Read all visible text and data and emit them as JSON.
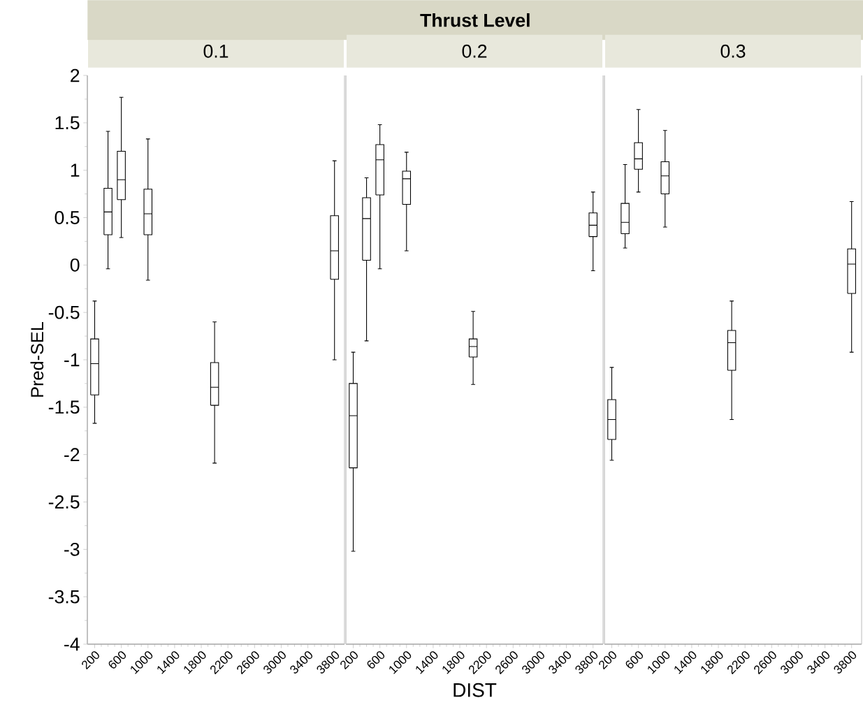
{
  "chart_data": [
    {
      "type": "box",
      "title": "0.1",
      "annotations": [
        "Thrust Level"
      ],
      "ylabel": "Pred-SEL",
      "x": [
        200,
        400,
        600,
        1000,
        2000,
        3800
      ],
      "boxes": [
        {
          "low": -1.67,
          "q1": -1.37,
          "median": -1.04,
          "q3": -0.78,
          "high": -0.38
        },
        {
          "low": -0.04,
          "q1": 0.32,
          "median": 0.56,
          "q3": 0.81,
          "high": 1.41
        },
        {
          "low": 0.29,
          "q1": 0.69,
          "median": 0.9,
          "q3": 1.2,
          "high": 1.77
        },
        {
          "low": -0.16,
          "q1": 0.32,
          "median": 0.54,
          "q3": 0.8,
          "high": 1.33
        },
        {
          "low": -2.09,
          "q1": -1.48,
          "median": -1.29,
          "q3": -1.03,
          "high": -0.6
        },
        {
          "low": -1.0,
          "q1": -0.15,
          "median": 0.15,
          "q3": 0.52,
          "high": 1.1
        }
      ],
      "xlim": [
        90,
        3950
      ],
      "xticks": [
        200,
        600,
        1000,
        1400,
        1800,
        2200,
        2600,
        3000,
        3400,
        3800
      ],
      "ylim": [
        -4,
        2
      ],
      "yticks": [
        -4,
        -3.5,
        -3,
        -2.5,
        -2,
        -1.5,
        -1,
        -0.5,
        0,
        0.5,
        1,
        1.5,
        2
      ]
    },
    {
      "type": "box",
      "title": "0.2",
      "xlabel": "DIST",
      "x": [
        200,
        400,
        600,
        1000,
        2000,
        3800
      ],
      "boxes": [
        {
          "low": -3.02,
          "q1": -2.14,
          "median": -1.59,
          "q3": -1.25,
          "high": -0.92
        },
        {
          "low": -0.8,
          "q1": 0.05,
          "median": 0.49,
          "q3": 0.71,
          "high": 0.92
        },
        {
          "low": -0.04,
          "q1": 0.74,
          "median": 1.11,
          "q3": 1.27,
          "high": 1.48
        },
        {
          "low": 0.15,
          "q1": 0.64,
          "median": 0.91,
          "q3": 0.99,
          "high": 1.19
        },
        {
          "low": -1.26,
          "q1": -0.97,
          "median": -0.86,
          "q3": -0.78,
          "high": -0.49
        },
        {
          "low": -0.06,
          "q1": 0.3,
          "median": 0.42,
          "q3": 0.55,
          "high": 0.77
        }
      ],
      "xlim": [
        90,
        3950
      ],
      "xticks": [
        200,
        600,
        1000,
        1400,
        1800,
        2200,
        2600,
        3000,
        3400,
        3800
      ],
      "ylim": [
        -4,
        2
      ],
      "yticks": [
        -4,
        -3.5,
        -3,
        -2.5,
        -2,
        -1.5,
        -1,
        -0.5,
        0,
        0.5,
        1,
        1.5,
        2
      ],
      "tick_labels": "x"
    },
    {
      "type": "box",
      "title": "0.3",
      "x": [
        200,
        400,
        600,
        1000,
        2000,
        3800
      ],
      "boxes": [
        {
          "low": -2.06,
          "q1": -1.84,
          "median": -1.63,
          "q3": -1.42,
          "high": -1.08
        },
        {
          "low": 0.18,
          "q1": 0.33,
          "median": 0.45,
          "q3": 0.65,
          "high": 1.06
        },
        {
          "low": 0.77,
          "q1": 1.01,
          "median": 1.12,
          "q3": 1.29,
          "high": 1.64
        },
        {
          "low": 0.4,
          "q1": 0.75,
          "median": 0.94,
          "q3": 1.09,
          "high": 1.42
        },
        {
          "low": -1.63,
          "q1": -1.11,
          "median": -0.82,
          "q3": -0.69,
          "high": -0.38
        },
        {
          "low": -0.92,
          "q1": -0.3,
          "median": 0.01,
          "q3": 0.17,
          "high": 0.67
        }
      ],
      "xlim": [
        90,
        3950
      ],
      "xticks": [
        200,
        600,
        1000,
        1400,
        1800,
        2200,
        2600,
        3000,
        3400,
        3800
      ],
      "ylim": [
        -4,
        2
      ],
      "yticks": [
        -4,
        -3.5,
        -3,
        -2.5,
        -2,
        -1.5,
        -1,
        -0.5,
        0,
        0.5,
        1,
        1.5,
        2
      ],
      "tick_labels": "x"
    }
  ]
}
